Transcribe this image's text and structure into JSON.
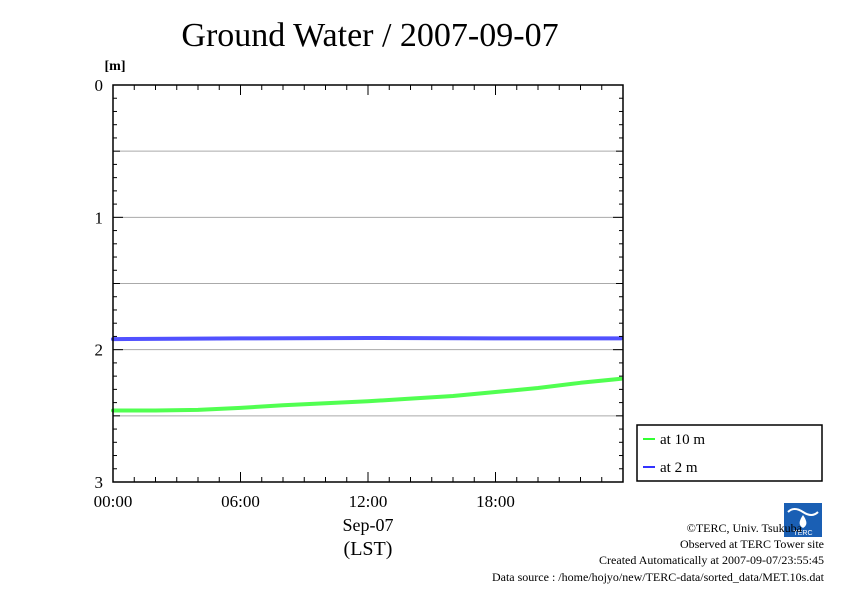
{
  "chart_data": {
    "type": "line",
    "title": "Ground Water / 2007-09-07",
    "y_unit": "[m]",
    "x_date_label": "Sep-07",
    "x_tz_label": "(LST)",
    "x_ticks": [
      "00:00",
      "06:00",
      "12:00",
      "18:00"
    ],
    "y_ticks": [
      "0",
      "1",
      "2",
      "3"
    ],
    "xlim_hours": [
      0,
      24
    ],
    "ylim": [
      0,
      3
    ],
    "y_inverted": true,
    "grid": true,
    "legend_position": "right-bottom, outside plot",
    "series": [
      {
        "name": "at 10 m",
        "color": "#33ff33",
        "x_hours": [
          0,
          2,
          4,
          6,
          8,
          10,
          12,
          14,
          16,
          18,
          20,
          22,
          23.9
        ],
        "values": [
          2.46,
          2.46,
          2.455,
          2.44,
          2.42,
          2.405,
          2.39,
          2.37,
          2.35,
          2.32,
          2.29,
          2.25,
          2.22
        ]
      },
      {
        "name": "at 2 m",
        "color": "#3333ff",
        "x_hours": [
          0,
          6,
          12,
          18,
          23.9
        ],
        "values": [
          1.92,
          1.915,
          1.912,
          1.915,
          1.915
        ]
      }
    ]
  },
  "footer": {
    "copyright": "©TERC, Univ. Tsukuba",
    "observed": "Observed at TERC Tower site",
    "created": "Created Automatically at 2007-09-07/23:55:45",
    "source": "Data source : /home/hojyo/new/TERC-data/sorted_data/MET.10s.dat",
    "logo_text": "TERC"
  }
}
